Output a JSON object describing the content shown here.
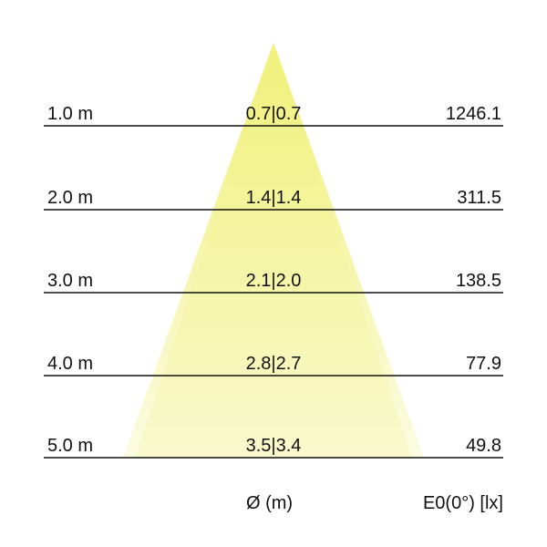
{
  "beam_color": "#eeee66",
  "rows": [
    {
      "distance": "1.0 m",
      "diameter": "0.7|0.7",
      "illuminance": "1246.1"
    },
    {
      "distance": "2.0 m",
      "diameter": "1.4|1.4",
      "illuminance": "311.5"
    },
    {
      "distance": "3.0 m",
      "diameter": "2.1|2.0",
      "illuminance": "138.5"
    },
    {
      "distance": "4.0 m",
      "diameter": "2.8|2.7",
      "illuminance": "77.9"
    },
    {
      "distance": "5.0 m",
      "diameter": "3.5|3.4",
      "illuminance": "49.8"
    }
  ],
  "footer": {
    "diameter_label": "Ø (m)",
    "illuminance_label": "E0(0°) [lx]"
  }
}
